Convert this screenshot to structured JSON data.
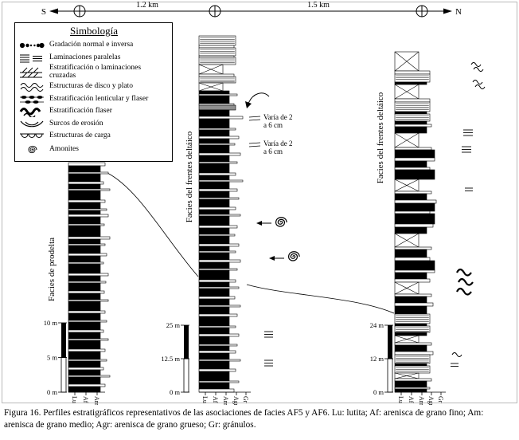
{
  "scalebar": {
    "south_label": "S",
    "north_label": "N",
    "distance_1": "1.2 km",
    "distance_2": "1.5 km"
  },
  "legend": {
    "title": "Simbología",
    "items": [
      {
        "icon": "graded-bedding-icon",
        "label": "Gradación normal e inversa"
      },
      {
        "icon": "parallel-laminations-icon",
        "label": "Laminaciones paralelas"
      },
      {
        "icon": "cross-stratification-icon",
        "label": "Estratificación o laminaciones cruzadas"
      },
      {
        "icon": "dish-plate-structures-icon",
        "label": "Estructuras de disco y plato"
      },
      {
        "icon": "lenticular-flaser-icon",
        "label": "Estratificación lenticular y flaser"
      },
      {
        "icon": "flaser-bedding-icon",
        "label": "Estratificación flaser"
      },
      {
        "icon": "erosion-scours-icon",
        "label": "Surcos de erosión"
      },
      {
        "icon": "load-structures-icon",
        "label": "Estructuras de carga"
      },
      {
        "icon": "ammonite-icon",
        "label": "Amonites"
      }
    ]
  },
  "bed_type_codes": {
    "0": "interbed-light",
    "1": "mudstone-dark",
    "2": "covered-interval",
    "3": "laminated",
    "4": "silty-gray"
  },
  "columns": [
    {
      "facies_label": "Facies de prodelta",
      "scale": [
        "10 m",
        "5 m",
        "0 m"
      ],
      "axis": [
        "Lu",
        "Af",
        "Am"
      ],
      "beds": [
        [
          4,
          46,
          0
        ],
        [
          8,
          40,
          1
        ],
        [
          2,
          50,
          0
        ],
        [
          10,
          40,
          1
        ],
        [
          3,
          44,
          0
        ],
        [
          6,
          40,
          1
        ],
        [
          2,
          52,
          0
        ],
        [
          12,
          40,
          1
        ],
        [
          3,
          46,
          0
        ],
        [
          8,
          40,
          1
        ],
        [
          2,
          48,
          0
        ],
        [
          5,
          40,
          1
        ],
        [
          3,
          50,
          0
        ],
        [
          9,
          40,
          1
        ],
        [
          2,
          45,
          0
        ],
        [
          14,
          40,
          1
        ],
        [
          3,
          52,
          0
        ],
        [
          6,
          40,
          1
        ],
        [
          2,
          46,
          0
        ],
        [
          10,
          40,
          1
        ],
        [
          3,
          48,
          0
        ],
        [
          8,
          40,
          1
        ],
        [
          2,
          44,
          0
        ],
        [
          12,
          40,
          1
        ],
        [
          3,
          50,
          0
        ],
        [
          7,
          40,
          1
        ],
        [
          2,
          47,
          0
        ],
        [
          10,
          40,
          1
        ],
        [
          3,
          45,
          0
        ],
        [
          8,
          40,
          1
        ],
        [
          2,
          50,
          0
        ],
        [
          12,
          40,
          1
        ],
        [
          3,
          46,
          0
        ],
        [
          9,
          40,
          1
        ],
        [
          2,
          48,
          0
        ],
        [
          10,
          40,
          1
        ],
        [
          3,
          44,
          0
        ],
        [
          8,
          40,
          1
        ],
        [
          2,
          50,
          0
        ],
        [
          11,
          40,
          1
        ],
        [
          3,
          46,
          0
        ],
        [
          10,
          40,
          1
        ],
        [
          2,
          48,
          0
        ],
        [
          8,
          40,
          1
        ],
        [
          3,
          44,
          0
        ],
        [
          7,
          40,
          1
        ],
        [
          2,
          52,
          0
        ],
        [
          9,
          40,
          1
        ],
        [
          3,
          46,
          0
        ],
        [
          7,
          40,
          1
        ]
      ]
    },
    {
      "facies_label": "Facies del frentes deltáico",
      "scale": [
        "25 m",
        "12.5 m",
        "0 m"
      ],
      "axis": [
        "Lu",
        "Af",
        "Am",
        "Agr",
        "Gr"
      ],
      "annotations": [
        {
          "l1": "Varía de 2",
          "l2": "a 6 cm"
        },
        {
          "l1": "Varía de 2",
          "l2": "a 6 cm"
        }
      ],
      "beds": [
        [
          12,
          46,
          3
        ],
        [
          3,
          44,
          0
        ],
        [
          10,
          46,
          3
        ],
        [
          2,
          44,
          0
        ],
        [
          9,
          46,
          3
        ],
        [
          12,
          30,
          2
        ],
        [
          3,
          44,
          0
        ],
        [
          8,
          46,
          3
        ],
        [
          10,
          30,
          2
        ],
        [
          4,
          38,
          1
        ],
        [
          2,
          48,
          0
        ],
        [
          10,
          38,
          1
        ],
        [
          2,
          44,
          0
        ],
        [
          6,
          46,
          4
        ],
        [
          8,
          38,
          1
        ],
        [
          3,
          55,
          0
        ],
        [
          12,
          38,
          1
        ],
        [
          2,
          46,
          0
        ],
        [
          8,
          38,
          1
        ],
        [
          3,
          50,
          0
        ],
        [
          6,
          38,
          1
        ],
        [
          2,
          45,
          0
        ],
        [
          10,
          38,
          1
        ],
        [
          3,
          52,
          0
        ],
        [
          8,
          38,
          1
        ],
        [
          2,
          48,
          0
        ],
        [
          12,
          38,
          1
        ],
        [
          3,
          46,
          0
        ],
        [
          6,
          38,
          1
        ],
        [
          2,
          55,
          0
        ],
        [
          9,
          38,
          1
        ],
        [
          3,
          48,
          0
        ],
        [
          8,
          38,
          1
        ],
        [
          2,
          50,
          0
        ],
        [
          10,
          38,
          1
        ],
        [
          3,
          46,
          0
        ],
        [
          6,
          38,
          1
        ],
        [
          2,
          52,
          0
        ],
        [
          12,
          38,
          1
        ],
        [
          3,
          48,
          0
        ],
        [
          8,
          38,
          1
        ],
        [
          2,
          45,
          0
        ],
        [
          10,
          38,
          1
        ],
        [
          3,
          50,
          0
        ],
        [
          6,
          38,
          1
        ],
        [
          2,
          46,
          0
        ],
        [
          9,
          38,
          1
        ],
        [
          3,
          52,
          0
        ],
        [
          8,
          38,
          1
        ],
        [
          2,
          48,
          0
        ],
        [
          12,
          38,
          1
        ],
        [
          3,
          46,
          0
        ],
        [
          6,
          38,
          1
        ],
        [
          2,
          50,
          0
        ],
        [
          10,
          38,
          1
        ],
        [
          3,
          45,
          0
        ],
        [
          8,
          38,
          1
        ],
        [
          2,
          52,
          0
        ],
        [
          9,
          38,
          1
        ],
        [
          3,
          48,
          0
        ],
        [
          12,
          38,
          1
        ],
        [
          2,
          46,
          0
        ],
        [
          8,
          38,
          1
        ],
        [
          3,
          50,
          0
        ],
        [
          10,
          38,
          1
        ],
        [
          2,
          48,
          0
        ],
        [
          6,
          38,
          1
        ],
        [
          3,
          46,
          0
        ],
        [
          8,
          38,
          1
        ],
        [
          2,
          52,
          0
        ],
        [
          10,
          38,
          1
        ],
        [
          3,
          46,
          0
        ],
        [
          12,
          38,
          1
        ],
        [
          2,
          50,
          0
        ],
        [
          8,
          38,
          1
        ],
        [
          4,
          44,
          0
        ]
      ]
    },
    {
      "facies_label": "Facies del frentes deltáico",
      "scale": [
        "24 m",
        "12 m",
        "0 m"
      ],
      "axis": [
        "Lu",
        "Af",
        "Am",
        "Agr",
        "Gr"
      ],
      "beds": [
        [
          24,
          30,
          2
        ],
        [
          4,
          44,
          0
        ],
        [
          10,
          44,
          3
        ],
        [
          3,
          40,
          1
        ],
        [
          18,
          30,
          2
        ],
        [
          4,
          44,
          0
        ],
        [
          12,
          44,
          3
        ],
        [
          3,
          40,
          1
        ],
        [
          9,
          44,
          3
        ],
        [
          4,
          40,
          1
        ],
        [
          3,
          46,
          0
        ],
        [
          8,
          40,
          1
        ],
        [
          18,
          30,
          2
        ],
        [
          3,
          46,
          0
        ],
        [
          10,
          50,
          1
        ],
        [
          4,
          50,
          0
        ],
        [
          8,
          40,
          1
        ],
        [
          3,
          44,
          0
        ],
        [
          12,
          50,
          1
        ],
        [
          15,
          30,
          2
        ],
        [
          3,
          46,
          0
        ],
        [
          8,
          40,
          1
        ],
        [
          4,
          52,
          0
        ],
        [
          10,
          50,
          1
        ],
        [
          3,
          44,
          0
        ],
        [
          13,
          50,
          1
        ],
        [
          4,
          48,
          0
        ],
        [
          8,
          40,
          1
        ],
        [
          17,
          30,
          2
        ],
        [
          3,
          46,
          0
        ],
        [
          10,
          40,
          1
        ],
        [
          4,
          44,
          0
        ],
        [
          12,
          50,
          1
        ],
        [
          3,
          50,
          0
        ],
        [
          8,
          40,
          1
        ],
        [
          4,
          44,
          0
        ],
        [
          15,
          30,
          2
        ],
        [
          3,
          46,
          0
        ],
        [
          8,
          40,
          1
        ],
        [
          4,
          48,
          0
        ],
        [
          10,
          40,
          1
        ],
        [
          12,
          44,
          3
        ],
        [
          3,
          40,
          1
        ],
        [
          8,
          44,
          3
        ],
        [
          4,
          40,
          1
        ],
        [
          9,
          30,
          2
        ],
        [
          3,
          46,
          0
        ],
        [
          8,
          40,
          1
        ],
        [
          4,
          48,
          0
        ],
        [
          11,
          44,
          3
        ],
        [
          3,
          40,
          1
        ],
        [
          9,
          44,
          3
        ],
        [
          7,
          30,
          2
        ],
        [
          3,
          46,
          0
        ],
        [
          8,
          40,
          1
        ],
        [
          2,
          44,
          0
        ],
        [
          4,
          40,
          1
        ]
      ]
    }
  ],
  "caption": "Figura 16. Perfiles estratigráficos representativos de las asociaciones de facies AF5 y AF6. Lu: lutita; Af: arenisca de grano fino; Am: arenisca de grano medio; Agr: arenisca de grano grueso; Gr: gránulos."
}
